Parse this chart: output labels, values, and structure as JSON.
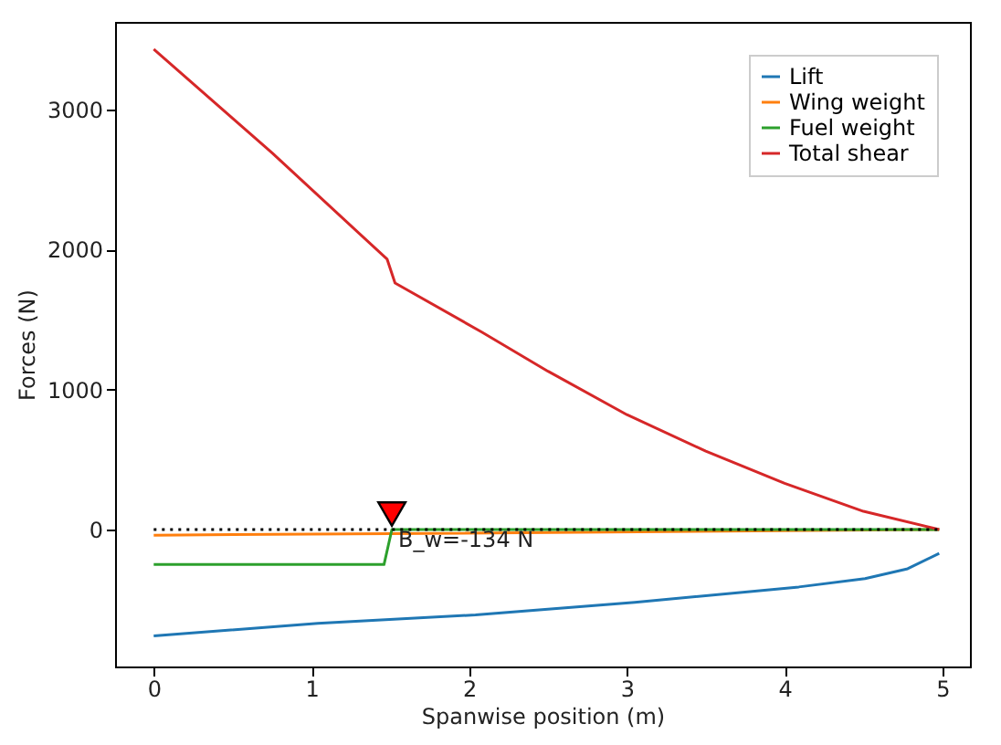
{
  "chart_data": {
    "type": "line",
    "xlabel": "Spanwise position (m)",
    "ylabel": "Forces (N)",
    "xlim": [
      -0.245,
      5.175
    ],
    "ylim": [
      -978,
      3625
    ],
    "xticks": [
      0,
      1,
      2,
      3,
      4,
      5
    ],
    "yticks": [
      0,
      1000,
      2000,
      3000
    ],
    "grid": false,
    "legend": "top right",
    "series": [
      {
        "name": "Lift",
        "color": "#1f77b4",
        "x": [
          0,
          1.04,
          2.04,
          3.05,
          4.09,
          4.51,
          4.78,
          4.98
        ],
        "values": [
          -760,
          -670,
          -610,
          -520,
          -410,
          -350,
          -280,
          -170
        ]
      },
      {
        "name": "Wing weight",
        "color": "#ff7f0e",
        "x": [
          0,
          1.5,
          4.98
        ],
        "values": [
          -40,
          -30,
          0
        ]
      },
      {
        "name": "Fuel weight",
        "color": "#2ca02c",
        "x": [
          0,
          1.46,
          1.51,
          4.98
        ],
        "values": [
          -250,
          -250,
          0,
          0
        ]
      },
      {
        "name": "Total shear",
        "color": "#d62728",
        "x": [
          0,
          0.75,
          1.48,
          1.53,
          2.08,
          2.5,
          3,
          3.5,
          4,
          4.5,
          4.98
        ],
        "values": [
          3430,
          2690,
          1930,
          1760,
          1410,
          1130,
          820,
          560,
          330,
          130,
          0
        ]
      },
      {
        "type": "line",
        "color": "#000000",
        "line_style": "dotted",
        "x": [
          0,
          4.98
        ],
        "values": [
          0,
          0
        ]
      },
      {
        "type": "scatter",
        "color": "#ff0000",
        "marker": "triangle",
        "x": [
          1.51
        ],
        "values": [
          110
        ]
      }
    ],
    "annotations": [
      {
        "text": "B_w=-134 N",
        "x": 1.55,
        "y": -70
      }
    ]
  }
}
